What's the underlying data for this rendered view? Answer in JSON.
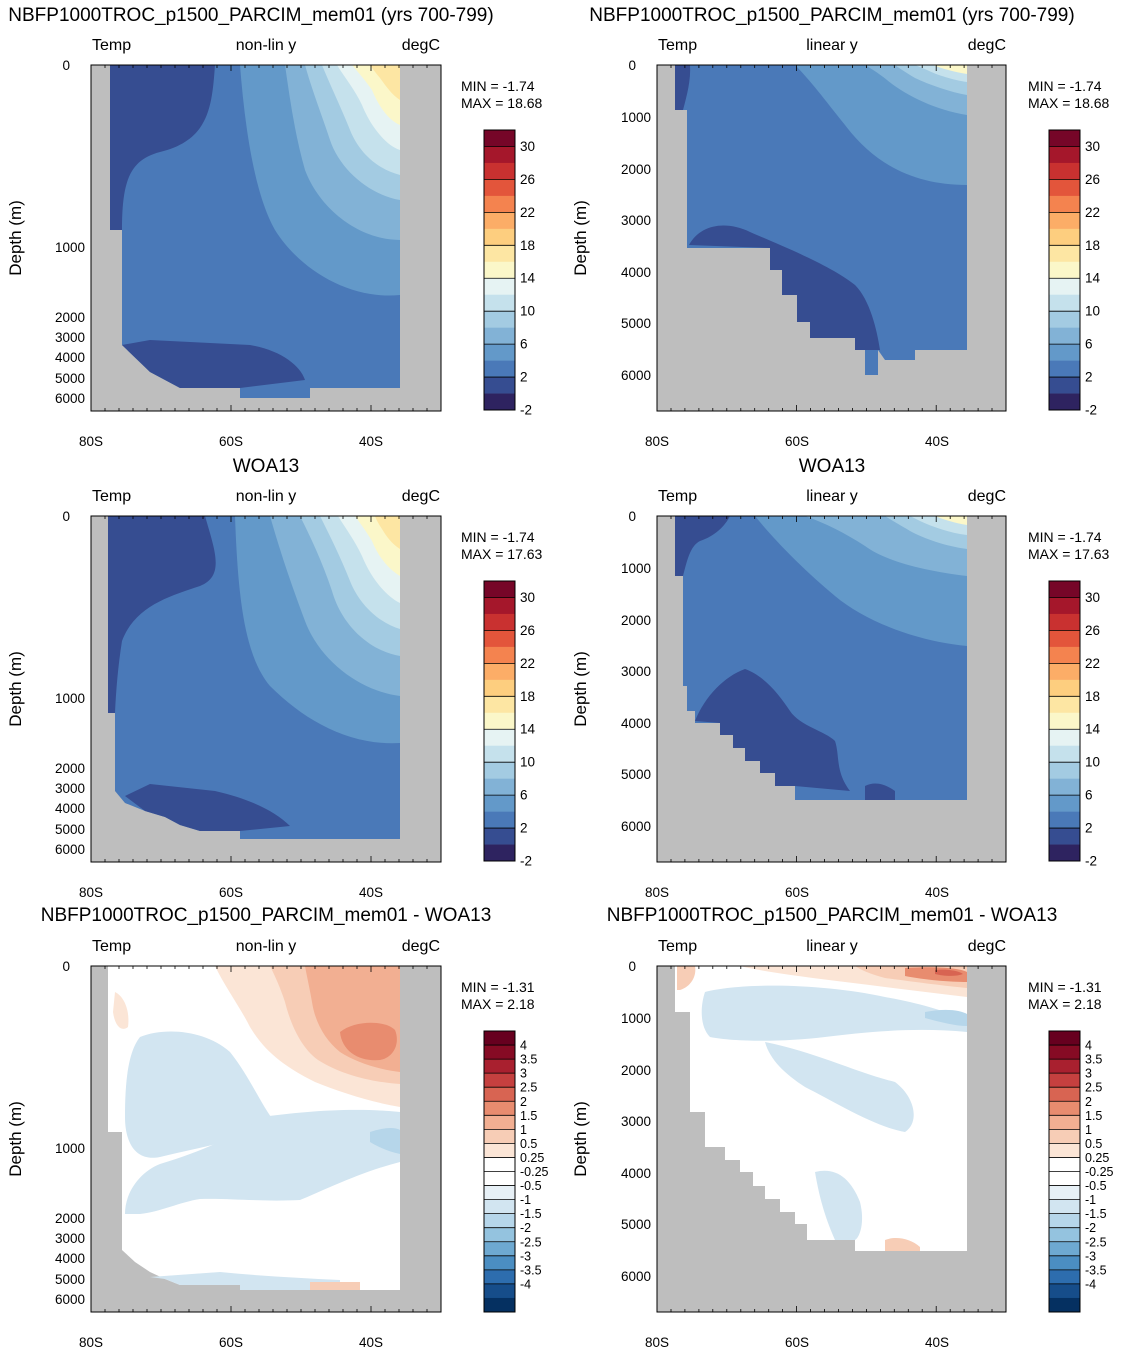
{
  "colors": {
    "land": "#bebebe",
    "temp_levels": [
      "#2e2360",
      "#364d91",
      "#4a79b8",
      "#6399c9",
      "#82b2d6",
      "#a3cbe2",
      "#c5e1ec",
      "#e6f3f3",
      "#fbf7c9",
      "#fde6a3",
      "#fdce7f",
      "#fcad67",
      "#f4834f",
      "#e3553b",
      "#c93130",
      "#a5172b",
      "#760628"
    ],
    "diff_levels": [
      "#053061",
      "#164d8a",
      "#2d6dae",
      "#4b8ec2",
      "#6ea9d1",
      "#94c3df",
      "#b6d6ea",
      "#d2e5f1",
      "#e7f0f6",
      "#ffffff",
      "#ffffff",
      "#fbe5d6",
      "#f7cdb6",
      "#f2af92",
      "#e88c6f",
      "#d86452",
      "#c5403f",
      "#a9202f",
      "#860b24",
      "#67001f"
    ]
  },
  "chart_data": [
    {
      "type": "contour",
      "title": "NBFP1000TROC_p1500_PARCIM_mem01 (yrs 700-799)",
      "left_label": "Temp",
      "center_label": "non-lin y",
      "right_label": "degC",
      "xlabel": "",
      "ylabel": "Depth (m)",
      "xticks": [
        "80S",
        "60S",
        "40S"
      ],
      "xlim": [
        -80,
        -30
      ],
      "yticks": [
        "0",
        "1000",
        "2000",
        "3000",
        "4000",
        "5000",
        "6000"
      ],
      "min_label": "MIN =  -1.74",
      "max_label": "MAX =  18.68",
      "colorbar_labels": [
        "30",
        "26",
        "22",
        "18",
        "14",
        "10",
        "6",
        "2",
        "-2"
      ],
      "levels": [
        -2,
        0,
        2,
        4,
        6,
        8,
        10,
        12,
        14,
        16,
        18,
        20,
        22,
        24,
        26,
        28,
        30
      ]
    },
    {
      "type": "contour",
      "title": "NBFP1000TROC_p1500_PARCIM_mem01 (yrs 700-799)",
      "left_label": "Temp",
      "center_label": "linear y",
      "right_label": "degC",
      "xlabel": "",
      "ylabel": "Depth (m)",
      "xticks": [
        "80S",
        "60S",
        "40S"
      ],
      "xlim": [
        -80,
        -30
      ],
      "yticks": [
        "0",
        "1000",
        "2000",
        "3000",
        "4000",
        "5000",
        "6000"
      ],
      "min_label": "MIN =  -1.74",
      "max_label": "MAX =  18.68",
      "colorbar_labels": [
        "30",
        "26",
        "22",
        "18",
        "14",
        "10",
        "6",
        "2",
        "-2"
      ],
      "levels": [
        -2,
        0,
        2,
        4,
        6,
        8,
        10,
        12,
        14,
        16,
        18,
        20,
        22,
        24,
        26,
        28,
        30
      ]
    },
    {
      "type": "contour",
      "title": "WOA13",
      "left_label": "Temp",
      "center_label": "non-lin y",
      "right_label": "degC",
      "xlabel": "",
      "ylabel": "Depth (m)",
      "xticks": [
        "80S",
        "60S",
        "40S"
      ],
      "xlim": [
        -80,
        -30
      ],
      "yticks": [
        "0",
        "1000",
        "2000",
        "3000",
        "4000",
        "5000",
        "6000"
      ],
      "min_label": "MIN =  -1.74",
      "max_label": "MAX =  17.63",
      "colorbar_labels": [
        "30",
        "26",
        "22",
        "18",
        "14",
        "10",
        "6",
        "2",
        "-2"
      ],
      "levels": [
        -2,
        0,
        2,
        4,
        6,
        8,
        10,
        12,
        14,
        16,
        18,
        20,
        22,
        24,
        26,
        28,
        30
      ]
    },
    {
      "type": "contour",
      "title": "WOA13",
      "left_label": "Temp",
      "center_label": "linear y",
      "right_label": "degC",
      "xlabel": "",
      "ylabel": "Depth (m)",
      "xticks": [
        "80S",
        "60S",
        "40S"
      ],
      "xlim": [
        -80,
        -30
      ],
      "yticks": [
        "0",
        "1000",
        "2000",
        "3000",
        "4000",
        "5000",
        "6000"
      ],
      "min_label": "MIN =  -1.74",
      "max_label": "MAX =  17.63",
      "colorbar_labels": [
        "30",
        "26",
        "22",
        "18",
        "14",
        "10",
        "6",
        "2",
        "-2"
      ],
      "levels": [
        -2,
        0,
        2,
        4,
        6,
        8,
        10,
        12,
        14,
        16,
        18,
        20,
        22,
        24,
        26,
        28,
        30
      ]
    },
    {
      "type": "contour",
      "title": "NBFP1000TROC_p1500_PARCIM_mem01 - WOA13",
      "left_label": "Temp",
      "center_label": "non-lin y",
      "right_label": "degC",
      "xlabel": "",
      "ylabel": "Depth (m)",
      "xticks": [
        "80S",
        "60S",
        "40S"
      ],
      "xlim": [
        -80,
        -30
      ],
      "yticks": [
        "0",
        "1000",
        "2000",
        "3000",
        "4000",
        "5000",
        "6000"
      ],
      "min_label": "MIN = -1.31",
      "max_label": "MAX =   2.18",
      "colorbar_labels": [
        "4",
        "3.5",
        "3",
        "2.5",
        "2",
        "1.5",
        "1",
        "0.5",
        "0.25",
        "-0.25",
        "-0.5",
        "-1",
        "-1.5",
        "-2",
        "-2.5",
        "-3",
        "-3.5",
        "-4"
      ],
      "levels": [
        -4,
        -3.5,
        -3,
        -2.5,
        -2,
        -1.5,
        -1,
        -0.5,
        -0.25,
        0.25,
        0.5,
        1,
        1.5,
        2,
        2.5,
        3,
        3.5,
        4
      ]
    },
    {
      "type": "contour",
      "title": "NBFP1000TROC_p1500_PARCIM_mem01 - WOA13",
      "left_label": "Temp",
      "center_label": "linear y",
      "right_label": "degC",
      "xlabel": "",
      "ylabel": "Depth (m)",
      "xticks": [
        "80S",
        "60S",
        "40S"
      ],
      "xlim": [
        -80,
        -30
      ],
      "yticks": [
        "0",
        "1000",
        "2000",
        "3000",
        "4000",
        "5000",
        "6000"
      ],
      "min_label": "MIN = -1.31",
      "max_label": "MAX =   2.18",
      "colorbar_labels": [
        "4",
        "3.5",
        "3",
        "2.5",
        "2",
        "1.5",
        "1",
        "0.5",
        "0.25",
        "-0.25",
        "-0.5",
        "-1",
        "-1.5",
        "-2",
        "-2.5",
        "-3",
        "-3.5",
        "-4"
      ],
      "levels": [
        -4,
        -3.5,
        -3,
        -2.5,
        -2,
        -1.5,
        -1,
        -0.5,
        -0.25,
        0.25,
        0.5,
        1,
        1.5,
        2,
        2.5,
        3,
        3.5,
        4
      ]
    }
  ]
}
